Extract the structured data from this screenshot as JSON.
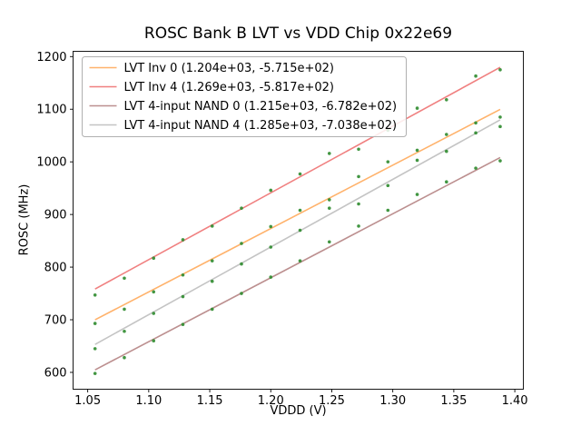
{
  "chart_data": {
    "type": "scatter",
    "title": "ROSC Bank B LVT vs VDD Chip 0x22e69",
    "xlabel": "VDDD (V)",
    "ylabel": "ROSC (MHz)",
    "xlim": [
      1.038,
      1.407
    ],
    "ylim": [
      568,
      1210
    ],
    "xticks": [
      1.05,
      1.1,
      1.15,
      1.2,
      1.25,
      1.3,
      1.35,
      1.4
    ],
    "xtick_labels": [
      "1.05",
      "1.10",
      "1.15",
      "1.20",
      "1.25",
      "1.30",
      "1.35",
      "1.40"
    ],
    "yticks": [
      600,
      700,
      800,
      900,
      1000,
      1100,
      1200
    ],
    "ytick_labels": [
      "600",
      "700",
      "800",
      "900",
      "1000",
      "1100",
      "1200"
    ],
    "grid": false,
    "legend_position": "upper left",
    "point_color": "#2e8b2e",
    "x": [
      1.056,
      1.08,
      1.104,
      1.128,
      1.152,
      1.176,
      1.2,
      1.224,
      1.248,
      1.272,
      1.296,
      1.32,
      1.344,
      1.368,
      1.388
    ],
    "series": [
      {
        "name": "LVT Inv 0 (1.204e+03, -5.715e+02)",
        "color": "#ffb26b",
        "fit": {
          "slope": 1204.0,
          "intercept": -571.5
        },
        "y": [
          693,
          720,
          753,
          785,
          812,
          845,
          877,
          908,
          928,
          972,
          1000,
          1022,
          1052,
          1074,
          1085
        ]
      },
      {
        "name": "LVT Inv 4 (1.269e+03, -5.817e+02)",
        "color": "#f08080",
        "fit": {
          "slope": 1269.0,
          "intercept": -581.7
        },
        "y": [
          747,
          779,
          817,
          852,
          878,
          912,
          946,
          977,
          1016,
          1024,
          1060,
          1102,
          1118,
          1163,
          1175
        ]
      },
      {
        "name": "LVT 4-input NAND 0 (1.215e+03, -6.782e+02)",
        "color": "#bc8f8f",
        "fit": {
          "slope": 1215.0,
          "intercept": -678.2
        },
        "y": [
          598,
          628,
          660,
          691,
          720,
          750,
          781,
          812,
          848,
          878,
          908,
          938,
          962,
          988,
          1002
        ]
      },
      {
        "name": "LVT 4-input NAND 4 (1.285e+03, -7.038e+02)",
        "color": "#c4c4c4",
        "fit": {
          "slope": 1285.0,
          "intercept": -703.8
        },
        "y": [
          645,
          678,
          712,
          744,
          773,
          806,
          838,
          870,
          912,
          920,
          955,
          1003,
          1020,
          1055,
          1067
        ]
      }
    ]
  }
}
